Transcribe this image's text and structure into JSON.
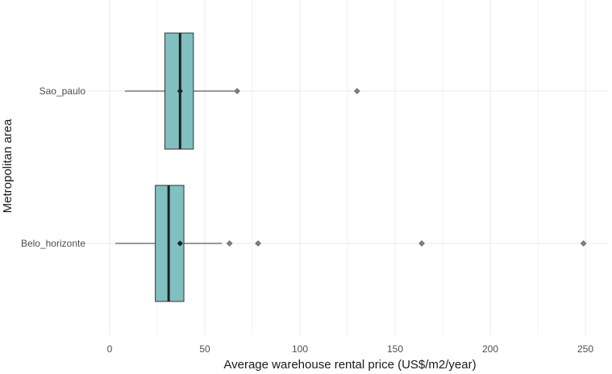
{
  "chart_data": {
    "type": "boxplot",
    "orientation": "horizontal",
    "xlabel": "Average warehouse rental price (US$/m2/year)",
    "ylabel": "Metropolitan area",
    "xlim": [
      -12,
      262
    ],
    "x_ticks": [
      0,
      50,
      100,
      150,
      200,
      250
    ],
    "x_tick_labels": [
      "0",
      "50",
      "100",
      "150",
      "200",
      "250"
    ],
    "grid": true,
    "categories": [
      "Sao_paulo",
      "Belo_horizonte"
    ],
    "series": [
      {
        "category": "Sao_paulo",
        "whisker_low": 8,
        "q1": 29,
        "median": 37,
        "q3": 44,
        "whisker_high": 67,
        "mean": 37,
        "outliers": [
          67,
          130
        ]
      },
      {
        "category": "Belo_horizonte",
        "whisker_low": 3,
        "q1": 24,
        "median": 31,
        "q3": 39,
        "whisker_high": 59,
        "mean": 37,
        "outliers": [
          63,
          78,
          164,
          249
        ]
      }
    ],
    "colors": {
      "box_fill": "#80c0c0",
      "box_stroke": "#333333",
      "median": "#1f1f1f",
      "outlier": "#808080",
      "mean": "#1f1f1f",
      "grid": "#ebebeb"
    }
  }
}
